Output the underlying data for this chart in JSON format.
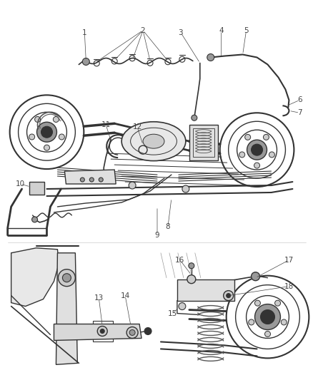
{
  "bg_color": "#ffffff",
  "line_color": "#555555",
  "dark_color": "#333333",
  "light_gray": "#cccccc",
  "mid_gray": "#999999",
  "figsize": [
    4.39,
    5.33
  ],
  "dpi": 100,
  "label_fontsize": 7.5,
  "label_color": "#444444"
}
